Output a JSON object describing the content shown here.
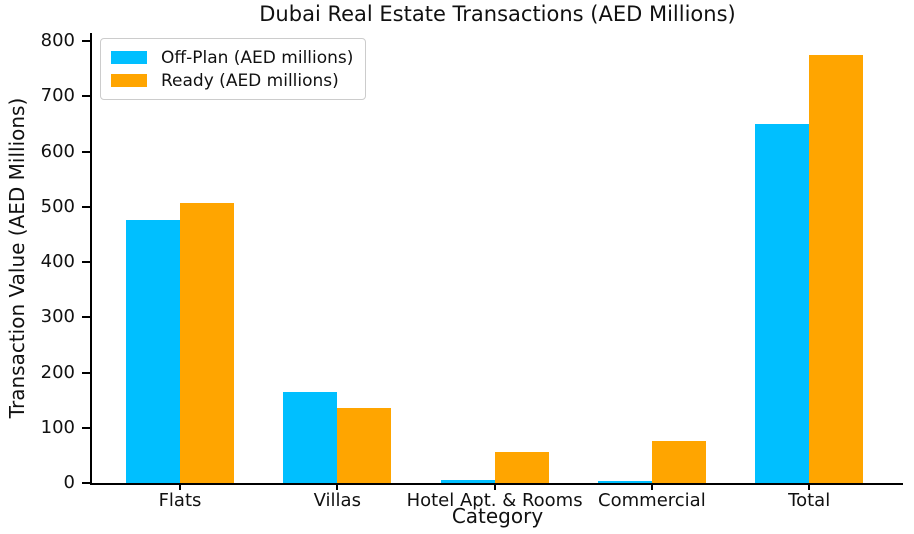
{
  "chart_data": {
    "type": "bar",
    "title": "Dubai Real Estate Transactions (AED Millions)",
    "xlabel": "Category",
    "ylabel": "Transaction Value (AED Millions)",
    "categories": [
      "Flats",
      "Villas",
      "Hotel Apt. & Rooms",
      "Commercial",
      "Total"
    ],
    "series": [
      {
        "name": "Off-Plan (AED millions)",
        "color": "#00BFFF",
        "values": [
          477,
          164,
          6,
          3,
          650
        ]
      },
      {
        "name": "Ready (AED millions)",
        "color": "#FFA500",
        "values": [
          507,
          136,
          56,
          77,
          776
        ]
      }
    ],
    "ylim": [
      0,
      815
    ],
    "yticks": [
      0,
      100,
      200,
      300,
      400,
      500,
      600,
      700,
      800
    ],
    "legend_position": "upper left",
    "grid": false,
    "background_color": "#ffffff",
    "axis_color": "#000000"
  }
}
